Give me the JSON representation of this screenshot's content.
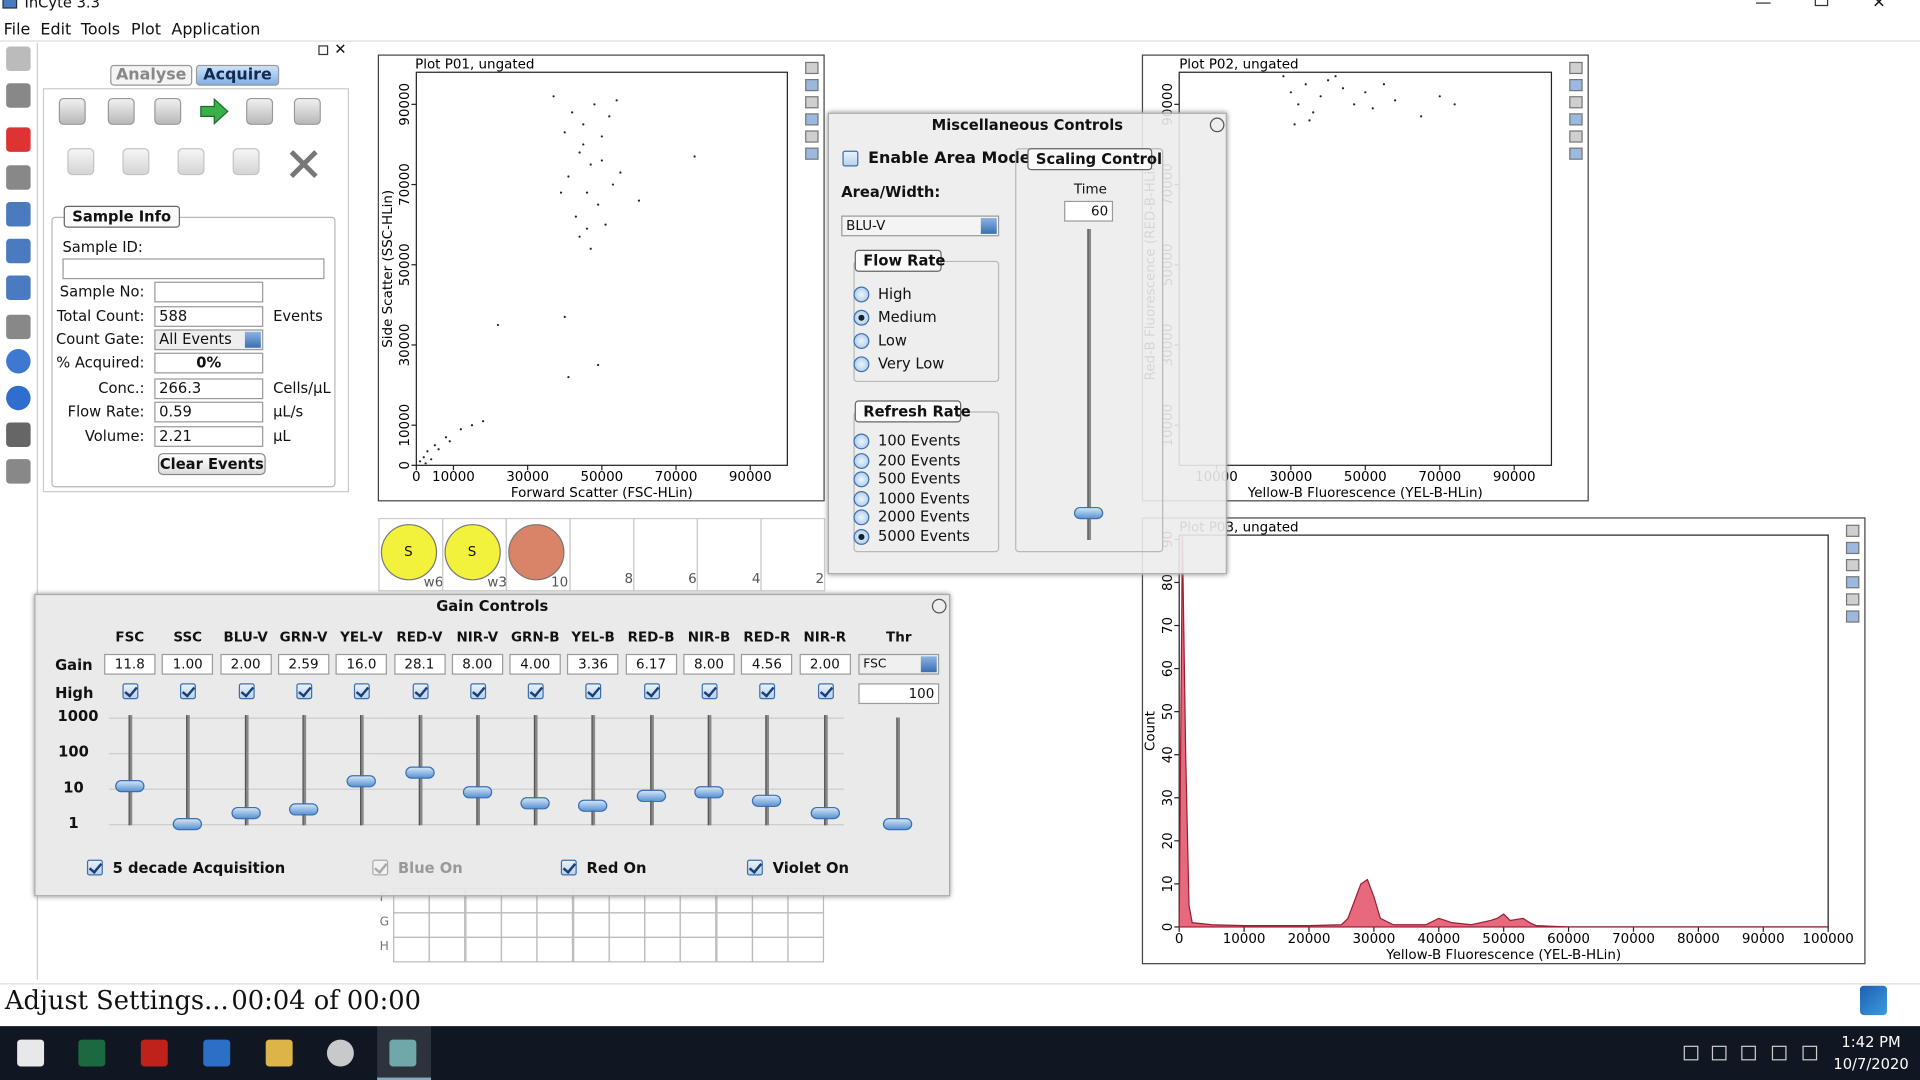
{
  "window_title": "InCyte 3.3",
  "menu": [
    "File",
    "Edit",
    "Tools",
    "Plot",
    "Application"
  ],
  "tabs": {
    "items": [
      "Analyse",
      "Acquire"
    ],
    "selected": 1
  },
  "sample_info": {
    "title": "Sample Info",
    "sample_id_label": "Sample ID:",
    "fields": [
      {
        "label": "Sample No:"
      },
      {
        "label": "Total Count:",
        "value": "588",
        "unit": "Events"
      },
      {
        "label": "Count Gate:",
        "value": "All Events",
        "dropdown": true
      },
      {
        "label": "% Acquired:",
        "value": "0%",
        "bold": true
      },
      {
        "label": "Conc.:",
        "value": "266.3",
        "unit": "Cells/µL"
      },
      {
        "label": "Flow Rate:",
        "value": "0.59",
        "unit": "µL/s"
      },
      {
        "label": "Volume:",
        "value": "2.21",
        "unit": "µL"
      }
    ],
    "button": "Clear Events"
  },
  "chart_data": [
    {
      "type": "scatter",
      "title": "Plot P01, ungated",
      "xlabel": "Forward Scatter (FSC-HLin)",
      "ylabel": "Side Scatter (SSC-HLin)",
      "color": "#222222",
      "xlim": [
        0,
        100000
      ],
      "ylim": [
        0,
        98000
      ],
      "xticks": [
        0,
        10000,
        30000,
        50000,
        70000,
        90000
      ],
      "yticks": [
        0,
        10000,
        30000,
        50000,
        70000,
        90000
      ],
      "x": [
        37000,
        42000,
        45000,
        48000,
        50000,
        52000,
        44000,
        47000,
        41000,
        53000,
        46000,
        49000,
        43000,
        51000,
        44000,
        47000,
        45000,
        50000,
        55000,
        60000,
        75000,
        40000,
        39000,
        46000,
        54000,
        22000,
        41000,
        49000,
        40000,
        1000,
        2000,
        3000,
        5000,
        8000,
        12000,
        15000,
        18000,
        4000,
        6000,
        2500,
        9000
      ],
      "values": [
        92000,
        88000,
        85000,
        90000,
        82000,
        87000,
        78000,
        75000,
        72000,
        70000,
        68000,
        65000,
        62000,
        60000,
        57000,
        54000,
        80000,
        76000,
        73000,
        66000,
        77000,
        83000,
        68000,
        59000,
        91000,
        35000,
        22000,
        25000,
        37000,
        1000,
        2000,
        3500,
        5000,
        7000,
        9000,
        10000,
        11000,
        1500,
        4000,
        500,
        6000
      ]
    },
    {
      "type": "scatter",
      "title": "Plot P02, ungated",
      "xlabel": "Yellow-B Fluorescence (YEL-B-HLin)",
      "ylabel": "Red-B Fluorescence (RED-B-HLin)",
      "color": "#222222",
      "xlim": [
        0,
        100000
      ],
      "ylim": [
        0,
        98000
      ],
      "xticks": [
        10000,
        30000,
        50000,
        70000,
        90000
      ],
      "yticks": [
        10000,
        30000,
        50000,
        70000,
        90000
      ],
      "x": [
        28000,
        30000,
        32000,
        34000,
        36000,
        38000,
        40000,
        44000,
        47000,
        50000,
        52000,
        55000,
        58000,
        65000,
        70000,
        74000,
        31000,
        35000,
        42000
      ],
      "values": [
        97000,
        93000,
        90000,
        95000,
        88000,
        92000,
        96000,
        94000,
        90000,
        93000,
        89000,
        95000,
        91000,
        87000,
        92000,
        90000,
        85000,
        86000,
        97000
      ]
    },
    {
      "type": "area",
      "title": "Plot P03, ungated",
      "xlabel": "Yellow-B Fluorescence (YEL-B-HLin)",
      "ylabel": "Count",
      "color": "#e8697d",
      "xlim": [
        0,
        100000
      ],
      "ylim": [
        0,
        91
      ],
      "xticks": [
        0,
        10000,
        20000,
        30000,
        40000,
        50000,
        60000,
        70000,
        80000,
        90000,
        100000
      ],
      "yticks": [
        0,
        10,
        20,
        30,
        40,
        50,
        60,
        70,
        80,
        90
      ],
      "x": [
        0,
        500,
        1000,
        1500,
        2000,
        5000,
        10000,
        20000,
        25000,
        26000,
        27000,
        28000,
        29000,
        30000,
        31000,
        33000,
        38000,
        40000,
        41000,
        42000,
        45000,
        48000,
        49000,
        50000,
        51000,
        53000,
        54000,
        55000,
        60000,
        100000
      ],
      "values": [
        0,
        95,
        40,
        5,
        1,
        0.5,
        0.3,
        0.3,
        0.5,
        2,
        6,
        10,
        11,
        7,
        2,
        0.5,
        0.5,
        2,
        1.5,
        1,
        0.5,
        1.5,
        2,
        3,
        1.5,
        2,
        1,
        0.3,
        0,
        0
      ]
    }
  ],
  "plate": {
    "wells": [
      {
        "label": "S",
        "sub": "w6",
        "color": "#f2f23c"
      },
      {
        "label": "S",
        "sub": "w3",
        "color": "#f2f23c"
      },
      {
        "sub": "10",
        "color": "#d98468"
      },
      {
        "sub": "8"
      },
      {
        "sub": "6"
      },
      {
        "sub": "4"
      },
      {
        "sub": "2"
      }
    ],
    "rows": [
      "F",
      "G",
      "H"
    ]
  },
  "misc_controls": {
    "title": "Miscellaneous Controls",
    "area_mode": {
      "label": "Enable Area Mode",
      "checked": false
    },
    "area_width": {
      "label": "Area/Width:",
      "value": "BLU-V"
    },
    "flow_rate": {
      "title": "Flow Rate",
      "options": [
        "High",
        "Medium",
        "Low",
        "Very Low"
      ],
      "selected": 1
    },
    "refresh_rate": {
      "title": "Refresh Rate",
      "options": [
        "100 Events",
        "200 Events",
        "500 Events",
        "1000 Events",
        "2000 Events",
        "5000 Events"
      ],
      "selected": 5
    },
    "scaling": {
      "title": "Scaling Control",
      "label": "Time",
      "value": "60"
    }
  },
  "gain_controls": {
    "title": "Gain Controls",
    "row_labels": [
      "Gain",
      "High"
    ],
    "channels": [
      "FSC",
      "SSC",
      "BLU-V",
      "GRN-V",
      "YEL-V",
      "RED-V",
      "NIR-V",
      "GRN-B",
      "YEL-B",
      "RED-B",
      "NIR-B",
      "RED-R",
      "NIR-R"
    ],
    "gains": [
      "11.8",
      "1.00",
      "2.00",
      "2.59",
      "16.0",
      "28.1",
      "8.00",
      "4.00",
      "3.36",
      "6.17",
      "8.00",
      "4.56",
      "2.00"
    ],
    "scale": [
      1000,
      100,
      10,
      1
    ],
    "threshold": {
      "label": "Thr",
      "channel": "FSC",
      "value": "100"
    },
    "options": [
      {
        "label": "5 decade Acquisition",
        "checked": true
      },
      {
        "label": "Blue On",
        "checked": true,
        "disabled": true
      },
      {
        "label": "Red On",
        "checked": true
      },
      {
        "label": "Violet On",
        "checked": true
      }
    ]
  },
  "status": {
    "message": "Adjust Settings...",
    "time": "00:04 of 00:00"
  },
  "taskbar": {
    "time": "1:42 PM",
    "date": "10/7/2020"
  }
}
